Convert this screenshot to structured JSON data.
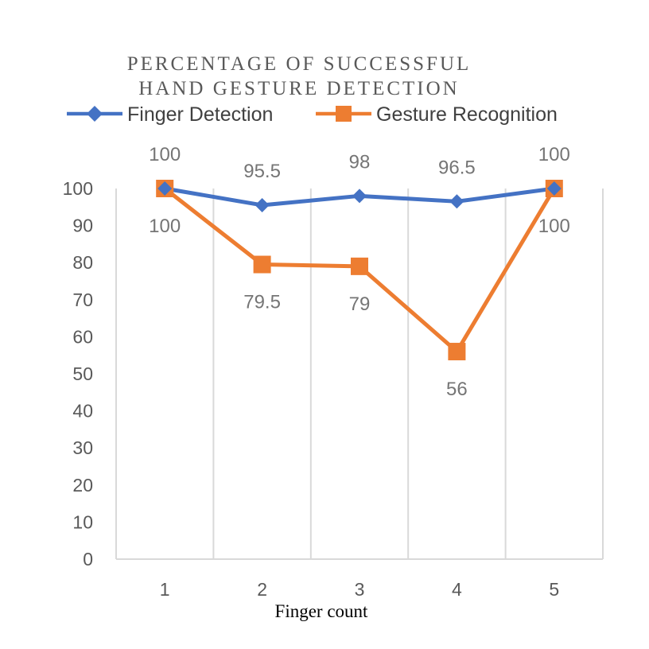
{
  "chart_data": {
    "type": "line",
    "title_lines": [
      "PERCENTAGE OF SUCCESSFUL",
      "HAND GESTURE DETECTION"
    ],
    "xlabel": "Finger count",
    "ylabel": "",
    "categories": [
      "1",
      "2",
      "3",
      "4",
      "5"
    ],
    "ylim": [
      0,
      100
    ],
    "yticks": [
      0,
      10,
      20,
      30,
      40,
      50,
      60,
      70,
      80,
      90,
      100
    ],
    "grid": "vertical",
    "legend": "top",
    "series": [
      {
        "name": "Finger Detection",
        "values": [
          100,
          95.5,
          98,
          96.5,
          100
        ],
        "labels": [
          "100",
          "95.5",
          "98",
          "96.5",
          "100"
        ],
        "label_position": "above",
        "marker": "diamond",
        "color": "#4472C4"
      },
      {
        "name": "Gesture Recognition",
        "values": [
          100,
          79.5,
          79,
          56,
          100
        ],
        "labels": [
          "100",
          "79.5",
          "79",
          "56",
          "100"
        ],
        "label_position": "below",
        "marker": "square",
        "color": "#ED7D31"
      }
    ]
  }
}
